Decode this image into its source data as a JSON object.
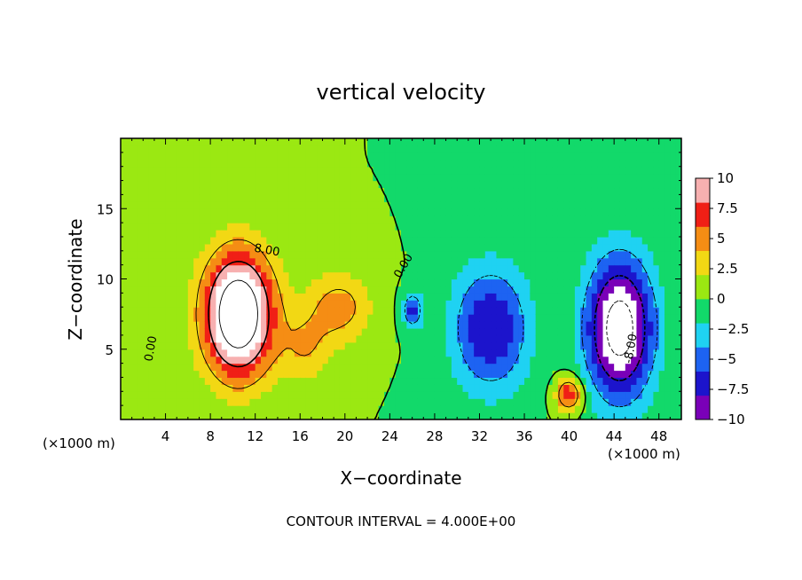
{
  "chart_data": {
    "type": "heatmap",
    "title": "vertical velocity",
    "xlabel": "X−coordinate",
    "ylabel": "Z−coordinate",
    "x_unit": "(×1000 m)",
    "y_unit": "(×1000 m)",
    "xlim": [
      0,
      50
    ],
    "ylim": [
      0,
      20
    ],
    "x_ticks": [
      4,
      8,
      12,
      16,
      20,
      24,
      28,
      32,
      36,
      40,
      44,
      48
    ],
    "y_ticks": [
      5,
      10,
      15
    ],
    "colorbar": {
      "min": -10,
      "max": 10,
      "ticks": [
        10,
        7.5,
        5,
        2.5,
        0,
        -2.5,
        -5,
        -7.5,
        -10
      ],
      "tick_labels": [
        "10",
        "7.5",
        "5",
        "2.5",
        "0",
        "−2.5",
        "−5",
        "−7.5",
        "−10"
      ],
      "colors": [
        "#7a00b8",
        "#1c14cc",
        "#1d63f2",
        "#1fd2f2",
        "#12d96a",
        "#9be812",
        "#f2d814",
        "#f58d14",
        "#f01f16",
        "#f7b0b0"
      ]
    },
    "contour_labels": [
      "8.00",
      "0.00",
      "0.00",
      "-8.00"
    ],
    "contour_interval": 4,
    "features": [
      {
        "sign": "positive",
        "x": 10.5,
        "z": 7.5,
        "sx": 3.2,
        "sz": 4.5,
        "peak": 16
      },
      {
        "sign": "positive",
        "x": 19.5,
        "z": 8.0,
        "sx": 3.0,
        "sz": 2.6,
        "peak": 5
      },
      {
        "sign": "positive",
        "x": 16.5,
        "z": 5.0,
        "sx": 2.2,
        "sz": 2.5,
        "peak": 3.5
      },
      {
        "sign": "positive",
        "x": 40.0,
        "z": 1.8,
        "sx": 1.2,
        "sz": 1.2,
        "peak": 8
      },
      {
        "sign": "negative",
        "x": 26.0,
        "z": 7.8,
        "sx": 0.9,
        "sz": 1.3,
        "peak": -7
      },
      {
        "sign": "negative",
        "x": 33.0,
        "z": 6.5,
        "sx": 3.5,
        "sz": 4.5,
        "peak": -8
      },
      {
        "sign": "negative",
        "x": 44.5,
        "z": 6.5,
        "sx": 3.0,
        "sz": 5.0,
        "peak": -14
      }
    ]
  },
  "annotation": "CONTOUR INTERVAL = 4.000E+00"
}
